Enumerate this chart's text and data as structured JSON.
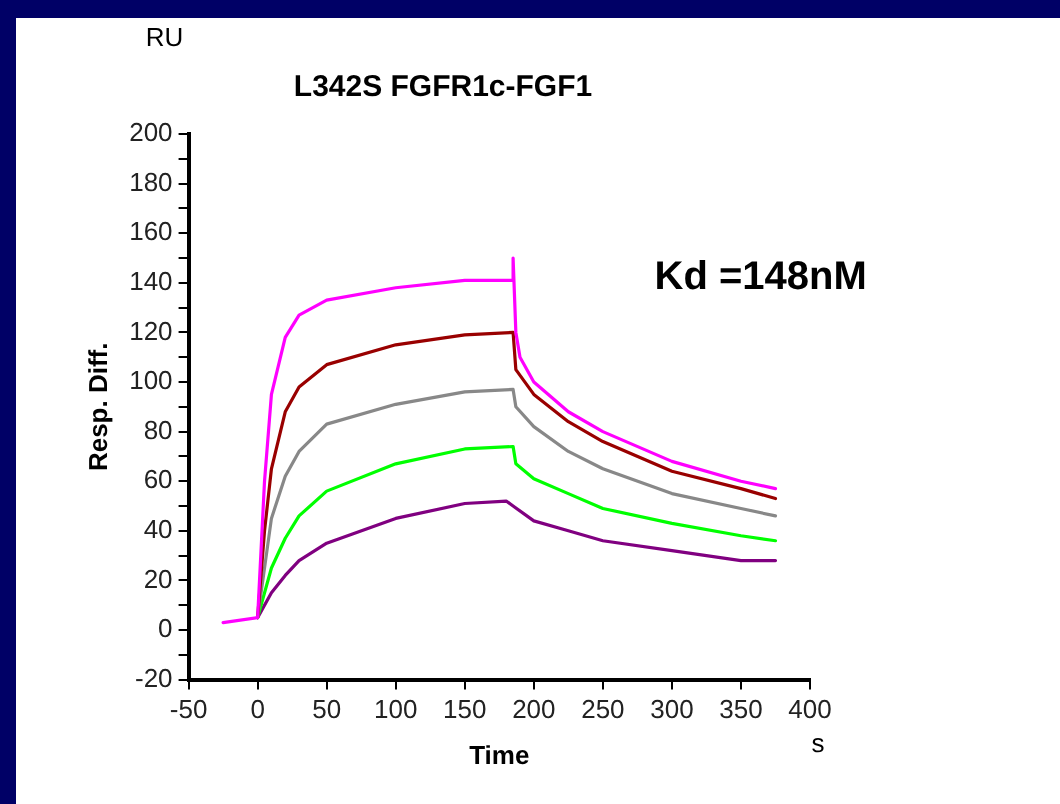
{
  "chart_data": {
    "type": "line",
    "title": "L342S FGFR1c-FGF1",
    "xlabel": "Time",
    "ylabel": "Resp. Diff.",
    "annotations": [
      "RU",
      "s",
      "Kd =148nM"
    ],
    "xlim": [
      -50,
      400
    ],
    "xticks": [
      -50,
      0,
      50,
      100,
      150,
      200,
      250,
      300,
      350,
      400
    ],
    "ylim": [
      -20,
      200
    ],
    "yticks": [
      -20,
      {
        "value": -10,
        "label": null
      },
      0,
      {
        "value": 10,
        "label": null
      },
      20,
      {
        "value": 30,
        "label": null
      },
      40,
      {
        "value": 50,
        "label": null
      },
      60,
      {
        "value": 70,
        "label": null
      },
      80,
      {
        "value": 90,
        "label": null
      },
      100,
      {
        "value": 110,
        "label": null
      },
      120,
      {
        "value": 130,
        "label": null
      },
      140,
      {
        "value": 150,
        "label": null
      },
      160,
      {
        "value": 170,
        "label": null
      },
      180,
      {
        "value": 190,
        "label": null
      },
      200
    ],
    "grid": false,
    "legend": false,
    "marker": "none",
    "line_style": "solid",
    "series": [
      {
        "color": "#ff00ff",
        "x": [
          -25,
          0,
          5,
          10,
          20,
          30,
          50,
          100,
          150,
          185,
          185,
          187,
          190,
          200,
          225,
          250,
          300,
          350,
          375
        ],
        "values": [
          3,
          5,
          60,
          95,
          118,
          127,
          133,
          138,
          141,
          141,
          150,
          120,
          110,
          100,
          88,
          80,
          68,
          60,
          57
        ]
      },
      {
        "color": "#990000",
        "x": [
          0,
          5,
          10,
          20,
          30,
          50,
          100,
          150,
          185,
          187,
          200,
          225,
          250,
          300,
          350,
          375
        ],
        "values": [
          5,
          40,
          65,
          88,
          98,
          107,
          115,
          119,
          120,
          105,
          95,
          84,
          76,
          64,
          57,
          53
        ]
      },
      {
        "color": "#888888",
        "x": [
          0,
          10,
          20,
          30,
          50,
          100,
          150,
          185,
          187,
          200,
          225,
          250,
          300,
          350,
          375
        ],
        "values": [
          5,
          45,
          62,
          72,
          83,
          91,
          96,
          97,
          90,
          82,
          72,
          65,
          55,
          49,
          46
        ]
      },
      {
        "color": "#00ff00",
        "x": [
          0,
          10,
          20,
          30,
          50,
          100,
          150,
          185,
          187,
          200,
          225,
          250,
          300,
          350,
          375
        ],
        "values": [
          5,
          25,
          37,
          46,
          56,
          67,
          73,
          74,
          67,
          61,
          55,
          49,
          43,
          38,
          36
        ]
      },
      {
        "color": "#800080",
        "x": [
          0,
          10,
          20,
          30,
          50,
          100,
          150,
          180,
          185,
          200,
          225,
          250,
          300,
          350,
          375
        ],
        "values": [
          5,
          15,
          22,
          28,
          35,
          45,
          51,
          52,
          50,
          44,
          40,
          36,
          32,
          28,
          28
        ]
      }
    ]
  }
}
